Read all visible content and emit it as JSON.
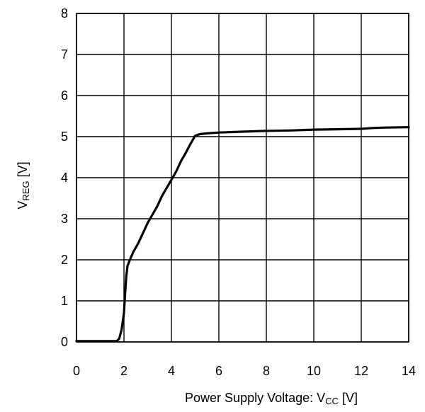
{
  "chart_data": {
    "type": "line",
    "title": "",
    "xlabel": {
      "main": "Power Supply Voltage: V",
      "sub": "CC",
      "unit": " [V]"
    },
    "ylabel": {
      "main": "V",
      "sub": "REG",
      "unit": " [V]"
    },
    "xlim": [
      0,
      14
    ],
    "ylim": [
      0,
      8
    ],
    "xticks": [
      0,
      2,
      4,
      6,
      8,
      10,
      12,
      14
    ],
    "yticks": [
      0,
      1,
      2,
      3,
      4,
      5,
      6,
      7,
      8
    ],
    "grid": true,
    "line_color": "#000000",
    "series": [
      {
        "x": [
          0,
          1.0,
          1.7,
          1.8,
          1.9,
          2.0,
          2.05,
          2.1,
          2.15,
          2.25,
          2.4,
          2.6,
          2.8,
          3.0,
          3.2,
          3.4,
          3.6,
          3.8,
          4.0,
          4.2,
          4.4,
          4.6,
          4.8,
          5.0,
          5.2,
          5.5,
          6.0,
          7.0,
          8.0,
          9.0,
          10.0,
          11.0,
          12.0,
          12.5,
          13.0,
          14.0
        ],
        "y": [
          0.02,
          0.02,
          0.02,
          0.08,
          0.3,
          0.7,
          1.2,
          1.6,
          1.85,
          2.0,
          2.2,
          2.4,
          2.65,
          2.9,
          3.1,
          3.3,
          3.55,
          3.75,
          3.95,
          4.15,
          4.4,
          4.6,
          4.82,
          5.02,
          5.06,
          5.08,
          5.1,
          5.12,
          5.14,
          5.15,
          5.17,
          5.18,
          5.19,
          5.21,
          5.22,
          5.23
        ]
      }
    ]
  }
}
